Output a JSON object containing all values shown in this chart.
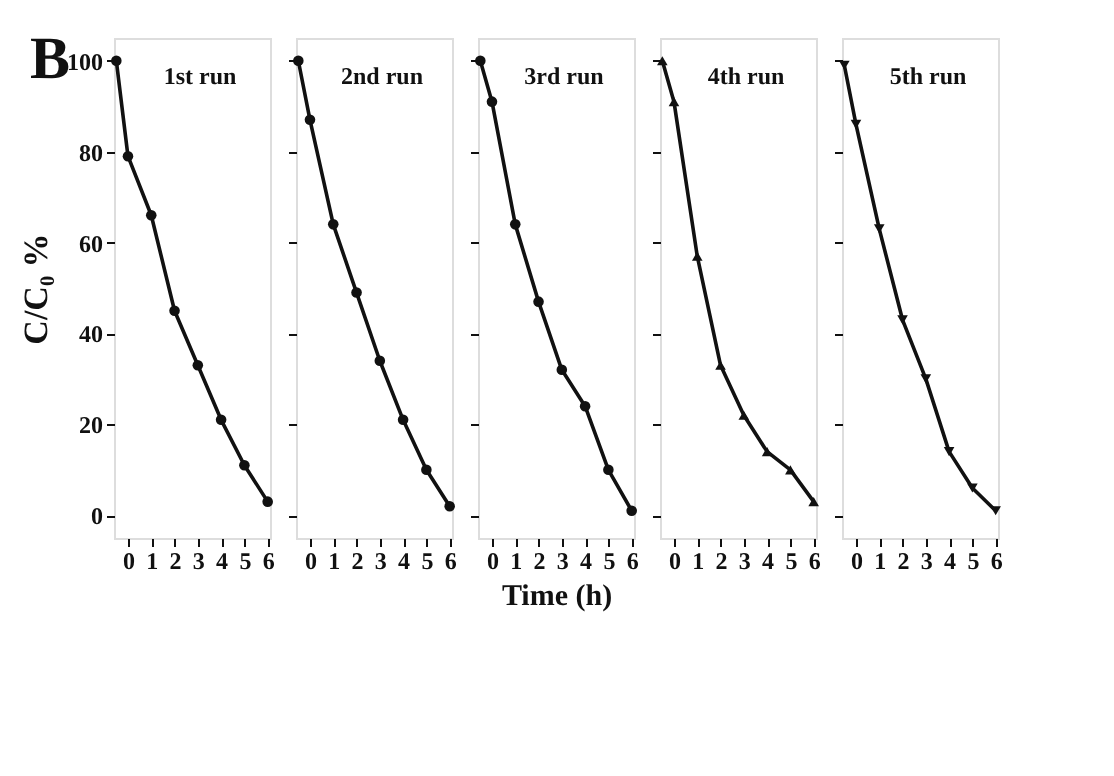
{
  "chart_data": [
    {
      "type": "line",
      "annotations": [
        "B"
      ],
      "ylabel": "C/C₀ %",
      "x": [
        -0.5,
        0,
        1,
        2,
        3,
        4,
        5,
        6
      ],
      "xlim": [
        -0.6,
        6.1
      ],
      "xticks": [
        0,
        1,
        2,
        3,
        4,
        5,
        6
      ],
      "ylim": [
        -5,
        105
      ],
      "yticks": [
        0,
        20,
        40,
        60,
        80,
        100
      ],
      "marker": "circle",
      "series": [
        {
          "name": "1st run",
          "color": "#111111",
          "values": [
            100,
            79,
            66,
            45,
            33,
            21,
            11,
            3
          ]
        }
      ]
    },
    {
      "type": "line",
      "x": [
        -0.5,
        0,
        1,
        2,
        3,
        4,
        5,
        6
      ],
      "xlim": [
        -0.6,
        6.1
      ],
      "xticks": [
        0,
        1,
        2,
        3,
        4,
        5,
        6
      ],
      "ylim": [
        -5,
        105
      ],
      "yticks": [
        0,
        20,
        40,
        60,
        80,
        100
      ],
      "marker": "circle",
      "tick_labels": "x",
      "series": [
        {
          "name": "2nd run",
          "color": "#111111",
          "values": [
            100,
            87,
            64,
            49,
            34,
            21,
            10,
            2
          ]
        }
      ]
    },
    {
      "type": "line",
      "xlabel": "Time (h)",
      "x": [
        -0.5,
        0,
        1,
        2,
        3,
        4,
        5,
        6
      ],
      "xlim": [
        -0.6,
        6.1
      ],
      "xticks": [
        0,
        1,
        2,
        3,
        4,
        5,
        6
      ],
      "ylim": [
        -5,
        105
      ],
      "yticks": [
        0,
        20,
        40,
        60,
        80,
        100
      ],
      "marker": "circle",
      "tick_labels": "x",
      "series": [
        {
          "name": "3rd run",
          "color": "#111111",
          "values": [
            100,
            91,
            64,
            47,
            32,
            24,
            10,
            1
          ]
        }
      ]
    },
    {
      "type": "line",
      "x": [
        -0.5,
        0,
        1,
        2,
        3,
        4,
        5,
        6
      ],
      "xlim": [
        -0.6,
        6.1
      ],
      "xticks": [
        0,
        1,
        2,
        3,
        4,
        5,
        6
      ],
      "ylim": [
        -5,
        105
      ],
      "yticks": [
        0,
        20,
        40,
        60,
        80,
        100
      ],
      "marker": "triangle",
      "tick_labels": "x",
      "series": [
        {
          "name": "4th run",
          "color": "#111111",
          "values": [
            100,
            91,
            57,
            33,
            22,
            14,
            10,
            3
          ]
        }
      ]
    },
    {
      "type": "line",
      "x": [
        -0.5,
        0,
        1,
        2,
        3,
        4,
        5,
        6
      ],
      "xlim": [
        -0.6,
        6.1
      ],
      "xticks": [
        0,
        1,
        2,
        3,
        4,
        5,
        6
      ],
      "ylim": [
        -5,
        105
      ],
      "yticks": [
        0,
        20,
        40,
        60,
        80,
        100
      ],
      "marker": "triangle-down",
      "tick_labels": "x",
      "series": [
        {
          "name": "5th run",
          "color": "#111111",
          "values": [
            99,
            86,
            63,
            43,
            30,
            14,
            6,
            1
          ]
        }
      ]
    }
  ]
}
